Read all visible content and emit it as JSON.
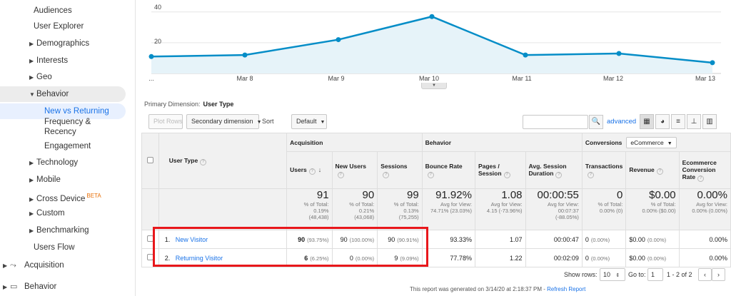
{
  "sidebar": {
    "items": [
      {
        "label": "Audiences",
        "top": 4,
        "left": 47,
        "caret": ""
      },
      {
        "label": "User Explorer",
        "top": 26,
        "left": 47,
        "caret": ""
      },
      {
        "label": "Demographics",
        "top": 50,
        "left": 41,
        "caret": "▶"
      },
      {
        "label": "Interests",
        "top": 74,
        "left": 41,
        "caret": "▶"
      },
      {
        "label": "Geo",
        "top": 97,
        "left": 41,
        "caret": "▶"
      }
    ],
    "behavior": {
      "label": "Behavior",
      "caret": "▼"
    },
    "new_vs_returning": "New vs Returning",
    "frequency": "Frequency &",
    "recency": "Recency",
    "engagement": "Engagement",
    "more": [
      {
        "label": "Technology",
        "caret": "▶"
      },
      {
        "label": "Mobile",
        "caret": "▶"
      },
      {
        "label": "Cross Device",
        "caret": "▶",
        "beta": "BETA"
      },
      {
        "label": "Custom",
        "caret": "▶"
      },
      {
        "label": "Benchmarking",
        "caret": "▶"
      }
    ],
    "users_flow": "Users Flow",
    "acquisition": "Acquisition",
    "behavior_section": "Behavior"
  },
  "chart": {
    "y_ticks": [
      "40",
      "20"
    ],
    "x_ticks": [
      "...",
      "Mar 8",
      "Mar 9",
      "Mar 10",
      "Mar 11",
      "Mar 12",
      "Mar 13"
    ]
  },
  "chart_data": {
    "type": "area",
    "x": [
      "Mar 7",
      "Mar 8",
      "Mar 9",
      "Mar 10",
      "Mar 11",
      "Mar 12",
      "Mar 13"
    ],
    "values": [
      11,
      12,
      22,
      37,
      12,
      13,
      7
    ],
    "ylim": [
      0,
      45
    ],
    "color": "#058dc7",
    "grid": true
  },
  "primary_dimension": {
    "label": "Primary Dimension:",
    "value": "User Type"
  },
  "toolbar": {
    "plot_rows": "Plot Rows",
    "secondary_dimension": "Secondary dimension",
    "sort_type_label": "Sort Type:",
    "sort_type_value": "Default",
    "search_placeholder": "",
    "advanced": "advanced"
  },
  "table": {
    "groups": {
      "acquisition": "Acquisition",
      "behavior": "Behavior",
      "conversions": "Conversions",
      "conversions_select": "eCommerce"
    },
    "headers": {
      "user_type": "User Type",
      "users": "Users",
      "new_users": "New Users",
      "sessions": "Sessions",
      "bounce_rate": "Bounce Rate",
      "pages_session_1": "Pages /",
      "pages_session_2": "Session",
      "avg_duration_1": "Avg. Session",
      "avg_duration_2": "Duration",
      "transactions": "Transactions",
      "revenue": "Revenue",
      "ecr_1": "Ecommerce",
      "ecr_2": "Conversion",
      "ecr_3": "Rate"
    },
    "totals": {
      "users": {
        "v": "91",
        "a": "% of Total:",
        "b": "0.19%",
        "c": "(48,438)"
      },
      "new_users": {
        "v": "90",
        "a": "% of Total:",
        "b": "0.21%",
        "c": "(43,068)"
      },
      "sessions": {
        "v": "99",
        "a": "% of Total:",
        "b": "0.13%",
        "c": "(75,255)"
      },
      "bounce_rate": {
        "v": "91.92%",
        "a": "Avg for View:",
        "b": "74.71% (23.03%)",
        "c": ""
      },
      "pages": {
        "v": "1.08",
        "a": "Avg for View:",
        "b": "4.15 (-73.96%)",
        "c": ""
      },
      "duration": {
        "v": "00:00:55",
        "a": "Avg for View:",
        "b": "00:07:37",
        "c": "(-88.05%)"
      },
      "transactions": {
        "v": "0",
        "a": "% of Total:",
        "b": "0.00% (0)",
        "c": ""
      },
      "revenue": {
        "v": "$0.00",
        "a": "% of Total:",
        "b": "0.00% ($0.00)",
        "c": ""
      },
      "ecr": {
        "v": "0.00%",
        "a": "Avg for View:",
        "b": "0.00% (0.00%)",
        "c": ""
      }
    },
    "rows": [
      {
        "idx": "1.",
        "type": "New Visitor",
        "users": "90",
        "users_pct": "(93.75%)",
        "new_users": "90",
        "new_users_pct": "(100.00%)",
        "sessions": "90",
        "sessions_pct": "(90.91%)",
        "bounce": "93.33%",
        "pages": "1.07",
        "duration": "00:00:47",
        "transactions": "0",
        "transactions_pct": "(0.00%)",
        "revenue": "$0.00",
        "revenue_pct": "(0.00%)",
        "ecr": "0.00%"
      },
      {
        "idx": "2.",
        "type": "Returning Visitor",
        "users": "6",
        "users_pct": "(6.25%)",
        "new_users": "0",
        "new_users_pct": "(0.00%)",
        "sessions": "9",
        "sessions_pct": "(9.09%)",
        "bounce": "77.78%",
        "pages": "1.22",
        "duration": "00:02:09",
        "transactions": "0",
        "transactions_pct": "(0.00%)",
        "revenue": "$0.00",
        "revenue_pct": "(0.00%)",
        "ecr": "0.00%"
      }
    ]
  },
  "pagination": {
    "show_rows_label": "Show rows:",
    "show_rows_value": "10",
    "goto_label": "Go to:",
    "goto_value": "1",
    "range": "1 - 2 of 2"
  },
  "footer": {
    "generated": "This report was generated on 3/14/20 at 2:18:37 PM - ",
    "refresh": "Refresh Report"
  }
}
